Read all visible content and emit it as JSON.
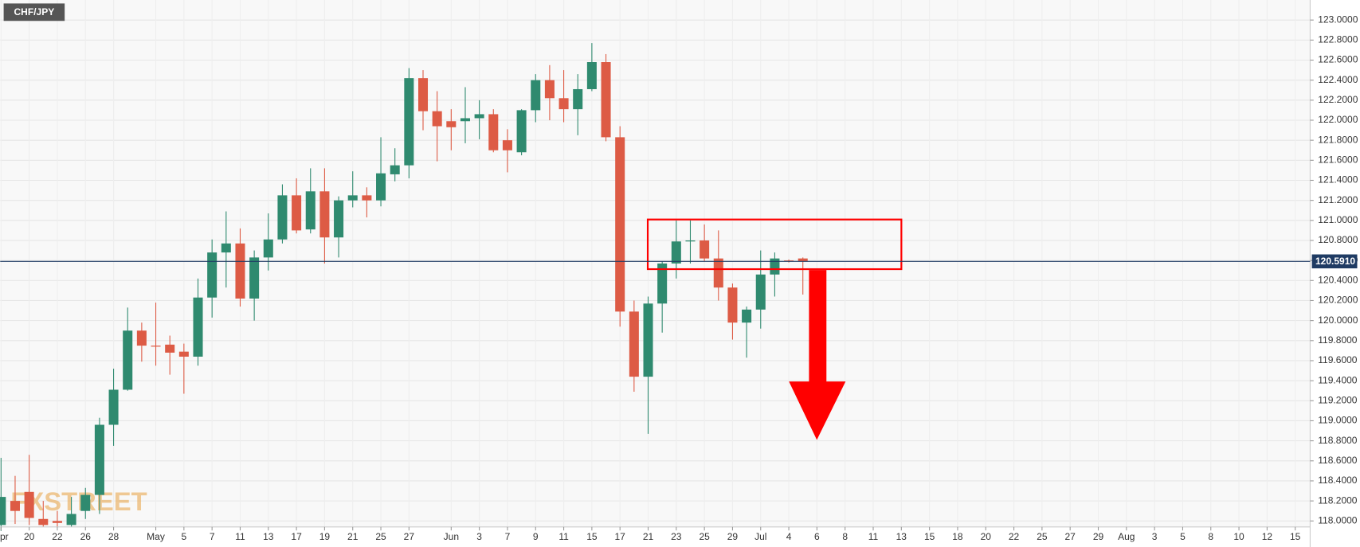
{
  "chart_data": {
    "type": "candlestick",
    "title": "CHF/JPY",
    "watermark": "FXSTREET",
    "categories": [
      "Apr",
      null,
      "20",
      null,
      "22",
      null,
      "26",
      null,
      "28",
      null,
      null,
      "May",
      null,
      "5",
      null,
      "7",
      null,
      "11",
      null,
      "13",
      null,
      "17",
      null,
      "19",
      null,
      "21",
      null,
      "25",
      null,
      "27",
      null,
      null,
      "Jun",
      null,
      "3",
      null,
      "7",
      null,
      "9",
      null,
      "11",
      null,
      "15",
      null,
      "17",
      null,
      "21",
      null,
      "23",
      null,
      "25",
      null,
      "29",
      null,
      "Jul",
      null,
      "4",
      null,
      "6",
      null,
      "8",
      null,
      "11",
      null,
      "13",
      null,
      "15",
      null,
      "18",
      null,
      "20",
      null,
      "22",
      null,
      "25",
      null,
      "27",
      null,
      "29",
      null,
      "Aug",
      null,
      "3",
      null,
      "5",
      null,
      "8",
      null,
      "10",
      null,
      "12",
      null,
      "15"
    ],
    "open": [
      117.96,
      118.2,
      118.29,
      118.02,
      118.0,
      117.96,
      118.1,
      118.26,
      118.96,
      119.31,
      119.9,
      119.75,
      119.76,
      119.69,
      119.64,
      120.23,
      120.68,
      120.77,
      120.22,
      120.63,
      120.81,
      121.25,
      120.91,
      121.29,
      120.83,
      121.2,
      121.25,
      121.2,
      121.46,
      121.55,
      122.42,
      122.09,
      121.99,
      121.99,
      122.02,
      122.06,
      121.8,
      121.68,
      122.1,
      122.4,
      122.22,
      122.11,
      122.31,
      122.58,
      121.83,
      120.09,
      119.44,
      120.17,
      120.57,
      120.79,
      120.8,
      120.62,
      120.33,
      119.98,
      120.11,
      120.46,
      120.6,
      120.62,
      null,
      null,
      null,
      null,
      null,
      null,
      null,
      null,
      null,
      null,
      null,
      null,
      null,
      null,
      null,
      null,
      null,
      null,
      null,
      null,
      null,
      null,
      null,
      null,
      null,
      null,
      null,
      null,
      null,
      null,
      null,
      null,
      null,
      null,
      null
    ],
    "high": [
      118.63,
      118.45,
      118.66,
      118.2,
      118.1,
      118.24,
      118.33,
      119.03,
      119.52,
      120.13,
      119.98,
      120.18,
      119.85,
      119.77,
      120.42,
      120.81,
      121.09,
      120.92,
      120.7,
      121.07,
      121.36,
      121.42,
      121.52,
      121.52,
      121.24,
      121.49,
      121.33,
      121.83,
      121.72,
      122.52,
      122.5,
      122.29,
      122.11,
      122.33,
      122.2,
      122.11,
      121.91,
      122.11,
      122.46,
      122.55,
      122.5,
      122.46,
      122.77,
      122.66,
      121.94,
      120.2,
      120.24,
      120.59,
      121.0,
      121.0,
      120.96,
      120.9,
      120.37,
      120.14,
      120.7,
      120.68,
      120.61,
      120.63,
      null,
      null,
      null,
      null,
      null,
      null,
      null,
      null,
      null,
      null,
      null,
      null,
      null,
      null,
      null,
      null,
      null,
      null,
      null,
      null,
      null,
      null,
      null,
      null,
      null,
      null,
      null,
      null,
      null,
      null,
      null,
      null,
      null,
      null,
      null
    ],
    "low": [
      117.9,
      117.97,
      117.96,
      117.94,
      117.94,
      117.94,
      118.02,
      118.07,
      118.75,
      119.3,
      119.59,
      119.55,
      119.46,
      119.27,
      119.55,
      120.03,
      120.33,
      120.14,
      120.0,
      120.5,
      120.77,
      120.87,
      120.87,
      120.57,
      120.63,
      121.13,
      121.03,
      121.14,
      121.39,
      121.42,
      121.9,
      121.59,
      121.7,
      121.77,
      121.81,
      121.68,
      121.48,
      121.65,
      121.98,
      122.0,
      121.98,
      121.85,
      122.29,
      121.79,
      119.94,
      119.29,
      118.87,
      119.88,
      120.42,
      120.57,
      120.59,
      120.2,
      119.81,
      119.63,
      119.92,
      120.24,
      120.58,
      120.26,
      null,
      null,
      null,
      null,
      null,
      null,
      null,
      null,
      null,
      null,
      null,
      null,
      null,
      null,
      null,
      null,
      null,
      null,
      null,
      null,
      null,
      null,
      null,
      null,
      null,
      null,
      null,
      null,
      null,
      null,
      null,
      null,
      null,
      null,
      null
    ],
    "close": [
      118.24,
      118.1,
      118.03,
      117.96,
      117.98,
      118.07,
      118.26,
      118.96,
      119.31,
      119.9,
      119.75,
      119.74,
      119.68,
      119.64,
      120.23,
      120.68,
      120.77,
      120.22,
      120.63,
      120.81,
      121.25,
      120.9,
      121.29,
      120.83,
      121.2,
      121.25,
      121.2,
      121.47,
      121.55,
      122.42,
      122.09,
      121.94,
      121.93,
      122.02,
      122.06,
      121.7,
      121.7,
      122.1,
      122.4,
      122.22,
      122.11,
      122.31,
      122.58,
      121.83,
      120.09,
      119.44,
      120.17,
      120.57,
      120.79,
      120.8,
      120.62,
      120.33,
      119.98,
      120.11,
      120.46,
      120.62,
      120.59,
      120.59,
      null,
      null,
      null,
      null,
      null,
      null,
      null,
      null,
      null,
      null,
      null,
      null,
      null,
      null,
      null,
      null,
      null,
      null,
      null,
      null,
      null,
      null,
      null,
      null,
      null,
      null,
      null,
      null,
      null,
      null,
      null,
      null,
      null,
      null,
      null
    ],
    "up_color": "#2f8a6f",
    "down_color": "#dd5b45",
    "ylim": [
      117.94,
      123.2
    ],
    "yticks": [
      {
        "value": 118,
        "label": "118.0000"
      },
      {
        "value": 118.2,
        "label": "118.2000"
      },
      {
        "value": 118.4,
        "label": "118.4000"
      },
      {
        "value": 118.6,
        "label": "118.6000"
      },
      {
        "value": 118.8,
        "label": "118.8000"
      },
      {
        "value": 119,
        "label": "119.0000"
      },
      {
        "value": 119.2,
        "label": "119.2000"
      },
      {
        "value": 119.4,
        "label": "119.4000"
      },
      {
        "value": 119.6,
        "label": "119.6000"
      },
      {
        "value": 119.8,
        "label": "119.8000"
      },
      {
        "value": 120,
        "label": "120.0000"
      },
      {
        "value": 120.2,
        "label": "120.2000"
      },
      {
        "value": 120.4,
        "label": "120.4000"
      },
      {
        "value": 120.6,
        "label": "120.6000"
      },
      {
        "value": 120.8,
        "label": "120.8000"
      },
      {
        "value": 121,
        "label": "121.0000"
      },
      {
        "value": 121.2,
        "label": "121.2000"
      },
      {
        "value": 121.4,
        "label": "121.4000"
      },
      {
        "value": 121.6,
        "label": "121.6000"
      },
      {
        "value": 121.8,
        "label": "121.8000"
      },
      {
        "value": 122,
        "label": "122.0000"
      },
      {
        "value": 122.2,
        "label": "122.2000"
      },
      {
        "value": 122.4,
        "label": "122.4000"
      },
      {
        "value": 122.6,
        "label": "122.6000"
      },
      {
        "value": 122.8,
        "label": "122.8000"
      },
      {
        "value": 123,
        "label": "123.0000"
      }
    ],
    "grid": true,
    "last_price": {
      "value": 120.591,
      "label": "120.5910",
      "color": "#1f3b63"
    }
  }
}
